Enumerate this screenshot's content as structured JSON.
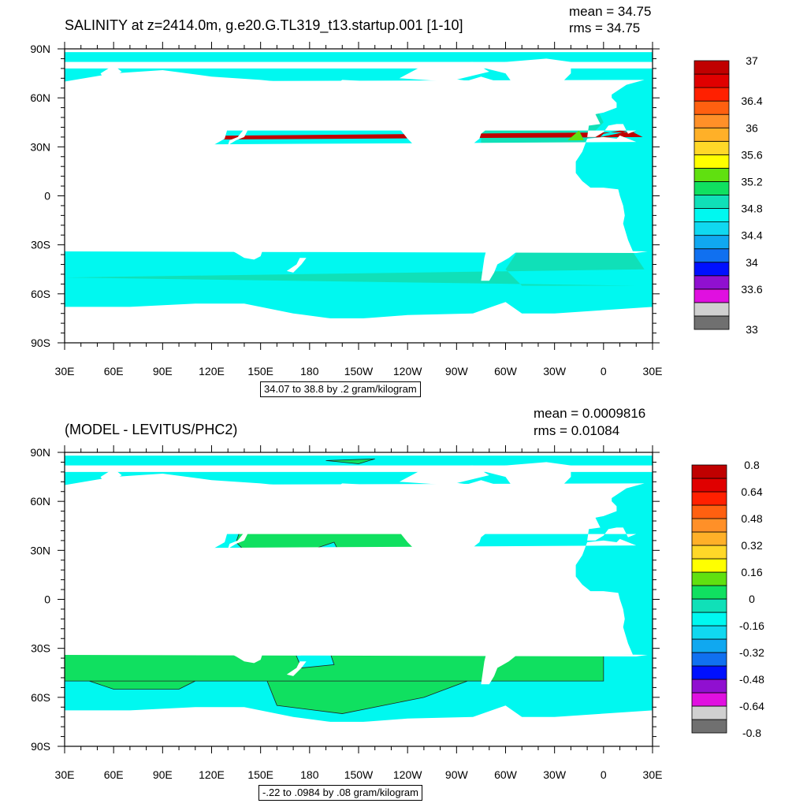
{
  "chart_data": [
    {
      "type": "heatmap",
      "title": "SALINITY at z=2414.0m, g.e20.G.TL319_t13.startup.001 [1-10]",
      "stats": {
        "mean": "mean = 34.75",
        "rms": "rms = 34.75"
      },
      "caption": "34.07 to 38.8 by .2 gram/kilogram",
      "ylabels": [
        "90N",
        "60N",
        "30N",
        "0",
        "30S",
        "60S",
        "90S"
      ],
      "xlabels": [
        "30E",
        "60E",
        "90E",
        "120E",
        "150E",
        "180",
        "150W",
        "120W",
        "90W",
        "60W",
        "30W",
        "0",
        "30E"
      ],
      "colorbar": {
        "colors": [
          "#707070",
          "#d0d0d0",
          "#e010e0",
          "#9010d0",
          "#0010ff",
          "#1070f0",
          "#10a8f0",
          "#10d8f0",
          "#00f8f0",
          "#10e0b8",
          "#10e060",
          "#60e010",
          "#ffff00",
          "#ffd828",
          "#ffb028",
          "#ff9028",
          "#ff6010",
          "#ff2000",
          "#e00000",
          "#c00000"
        ],
        "labels": [
          "33",
          "33.6",
          "34",
          "34.4",
          "34.8",
          "35.2",
          "35.6",
          "36",
          "36.4",
          "37"
        ],
        "label_boundary_index": [
          0,
          3,
          5,
          7,
          9,
          11,
          13,
          15,
          17,
          20
        ]
      },
      "dominant_values": {
        "pacific_indian_southern": 34.7,
        "atlantic": 34.9,
        "mediterranean_outflow": 36.8
      }
    },
    {
      "type": "heatmap",
      "title": "(MODEL - LEVITUS/PHC2)",
      "stats": {
        "mean": "mean = 0.0009816",
        "rms": "rms = 0.01084"
      },
      "caption": "-.22 to .0984 by .08 gram/kilogram",
      "ylabels": [
        "90N",
        "60N",
        "30N",
        "0",
        "30S",
        "60S",
        "90S"
      ],
      "xlabels": [
        "30E",
        "60E",
        "90E",
        "120E",
        "150E",
        "180",
        "150W",
        "120W",
        "90W",
        "60W",
        "30W",
        "0",
        "30E"
      ],
      "colorbar": {
        "colors": [
          "#707070",
          "#d0d0d0",
          "#e010e0",
          "#9010d0",
          "#0010ff",
          "#1070f0",
          "#10a8f0",
          "#10d8f0",
          "#00f8f0",
          "#10e0b8",
          "#10e060",
          "#60e010",
          "#ffff00",
          "#ffd828",
          "#ffb028",
          "#ff9028",
          "#ff6010",
          "#ff2000",
          "#e00000",
          "#c00000"
        ],
        "labels": [
          "-0.8",
          "-0.64",
          "-0.48",
          "-0.32",
          "-0.16",
          "0",
          "0.16",
          "0.32",
          "0.48",
          "0.64",
          "0.8"
        ],
        "label_boundary_index": [
          0,
          2,
          4,
          6,
          8,
          10,
          12,
          14,
          16,
          18,
          20
        ]
      },
      "dominant_values": {
        "positive_regions": 0.04,
        "negative_regions": -0.04
      }
    }
  ]
}
